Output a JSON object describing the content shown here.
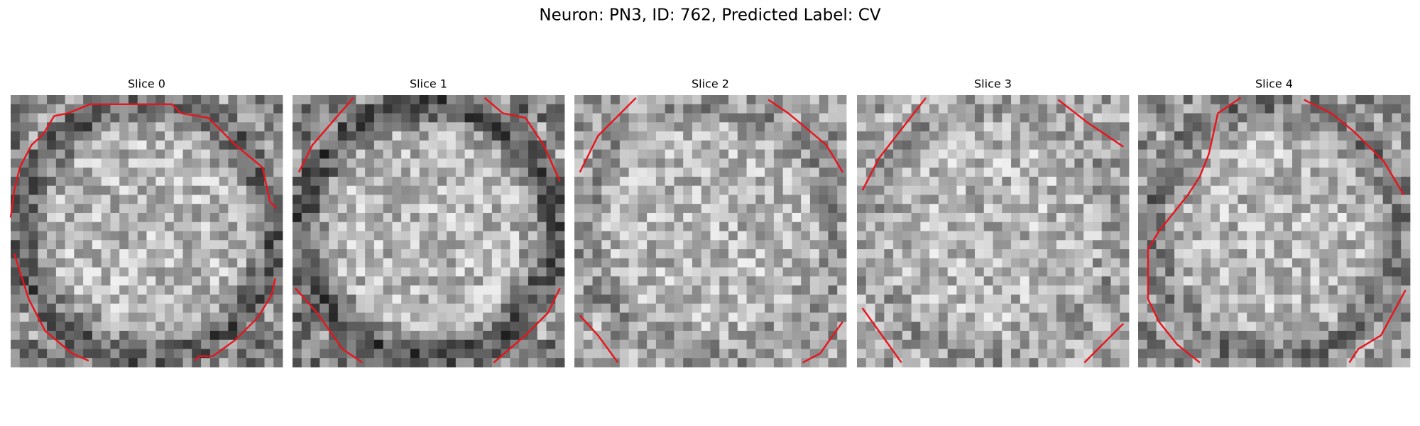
{
  "title": "Neuron: PN3, ID: 762, Predicted Label: CV",
  "panels": [
    {
      "title": "Slice 0"
    },
    {
      "title": "Slice 1"
    },
    {
      "title": "Slice 2"
    },
    {
      "title": "Slice 3"
    },
    {
      "title": "Slice 4"
    }
  ]
}
